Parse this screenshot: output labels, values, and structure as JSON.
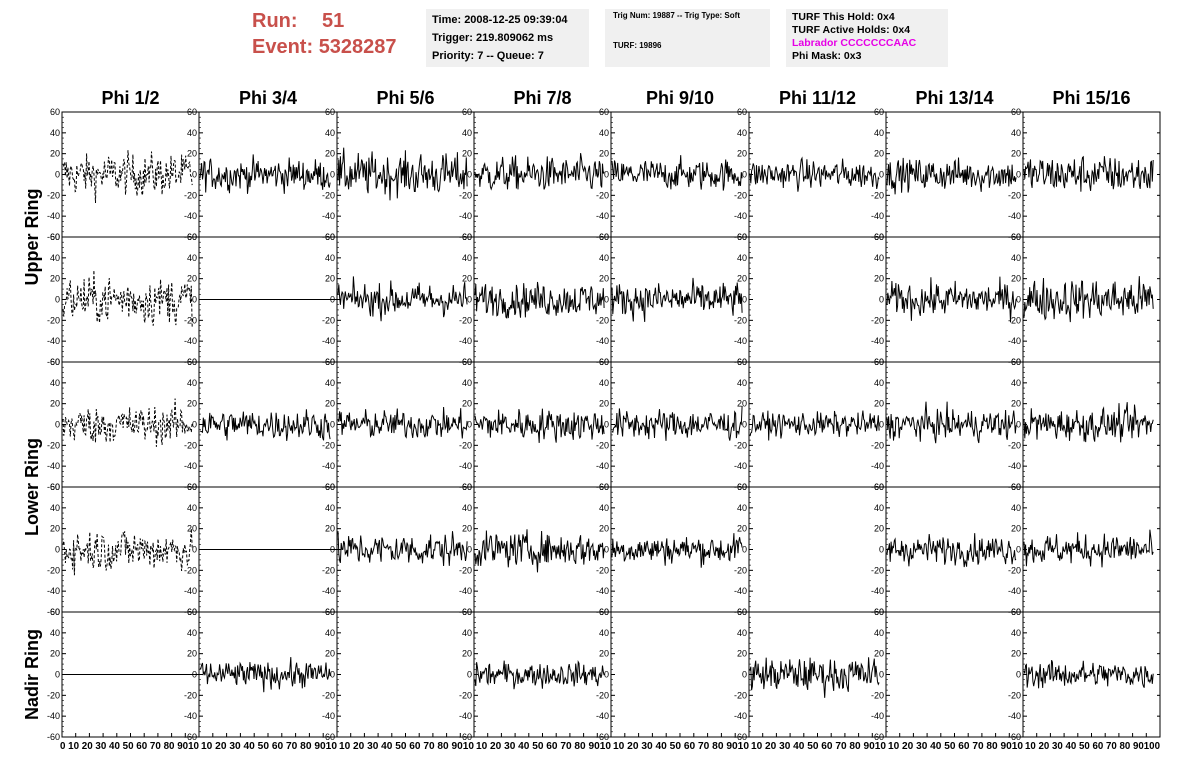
{
  "header": {
    "run_label": "Run:",
    "run_value": "51",
    "event_label": "Event:",
    "event_value": "5328287"
  },
  "info_box_1": {
    "time": "Time: 2008-12-25 09:39:04",
    "trigger": "Trigger: 219.809062 ms",
    "priority": "Priority: 7 -- Queue: 7"
  },
  "info_box_2": {
    "trig": "Trig Num: 19887 -- Trig Type: Soft",
    "turf": "TURF: 19896"
  },
  "info_box_3": {
    "this_hold": "TURF This Hold: 0x4",
    "active_holds": "TURF Active Holds: 0x4",
    "labrador": "Labrador CCCCCCCAAC",
    "phi_mask": "Phi Mask: 0x3"
  },
  "chart_data": {
    "type": "line",
    "columns": [
      "Phi 1/2",
      "Phi 3/4",
      "Phi 5/6",
      "Phi 7/8",
      "Phi 9/10",
      "Phi 11/12",
      "Phi 13/14",
      "Phi 15/16"
    ],
    "rows": [
      "Upper Ring",
      "Lower Ring",
      "Nadir Ring"
    ],
    "ring_rows": [
      {
        "ring": "Upper Ring",
        "panels": 2
      },
      {
        "ring": "Lower Ring",
        "panels": 2
      },
      {
        "ring": "Nadir Ring",
        "panels": 1
      }
    ],
    "ylim": [
      -60,
      60
    ],
    "yticks": [
      -60,
      -40,
      -20,
      0,
      20,
      40,
      60
    ],
    "xlim": [
      0,
      100
    ],
    "xticks": [
      0,
      10,
      20,
      30,
      40,
      50,
      60,
      70,
      80,
      90,
      100
    ],
    "xtick_labels": [
      "0 10 20 30 40 50 60 70 80 9010",
      "10 20 30 40 50 60 70 80 9010",
      "10 20 30 40 50 60 70 80 9010",
      "10 20 30 40 50 60 70 80 9010",
      "10 20 30 40 50 60 70 80 9010",
      "10 20 30 40 50 60 70 80 9010",
      "10 20 30 40 50 60 70 80 9010",
      "10 20 30 40 50 60 70 80 90100"
    ],
    "trace_style": [
      [
        "dashed",
        "solid",
        "solid",
        "solid",
        "solid",
        "solid",
        "solid",
        "solid"
      ],
      [
        "dashed",
        "flat",
        "solid",
        "solid",
        "solid",
        "empty",
        "solid",
        "solid"
      ],
      [
        "dashed",
        "solid",
        "solid",
        "solid",
        "solid",
        "solid",
        "solid",
        "solid"
      ],
      [
        "dashed",
        "flat",
        "solid",
        "solid",
        "solid",
        "empty",
        "solid",
        "solid"
      ],
      [
        "flat",
        "solid",
        "empty",
        "solid",
        "empty",
        "solid",
        "empty",
        "solid"
      ]
    ],
    "trace_amplitude": [
      [
        22,
        17,
        22,
        18,
        16,
        15,
        17,
        20
      ],
      [
        25,
        0,
        17,
        18,
        18,
        0,
        18,
        22
      ],
      [
        20,
        16,
        15,
        17,
        16,
        13,
        16,
        17
      ],
      [
        22,
        0,
        17,
        18,
        15,
        0,
        15,
        16
      ],
      [
        0,
        14,
        0,
        13,
        0,
        18,
        0,
        14
      ]
    ],
    "grid": false
  },
  "colors": {
    "run_text": "#c8504b",
    "info_bg": "#f0f0f0",
    "labrador": "#e600e6",
    "trace": "#000000"
  }
}
